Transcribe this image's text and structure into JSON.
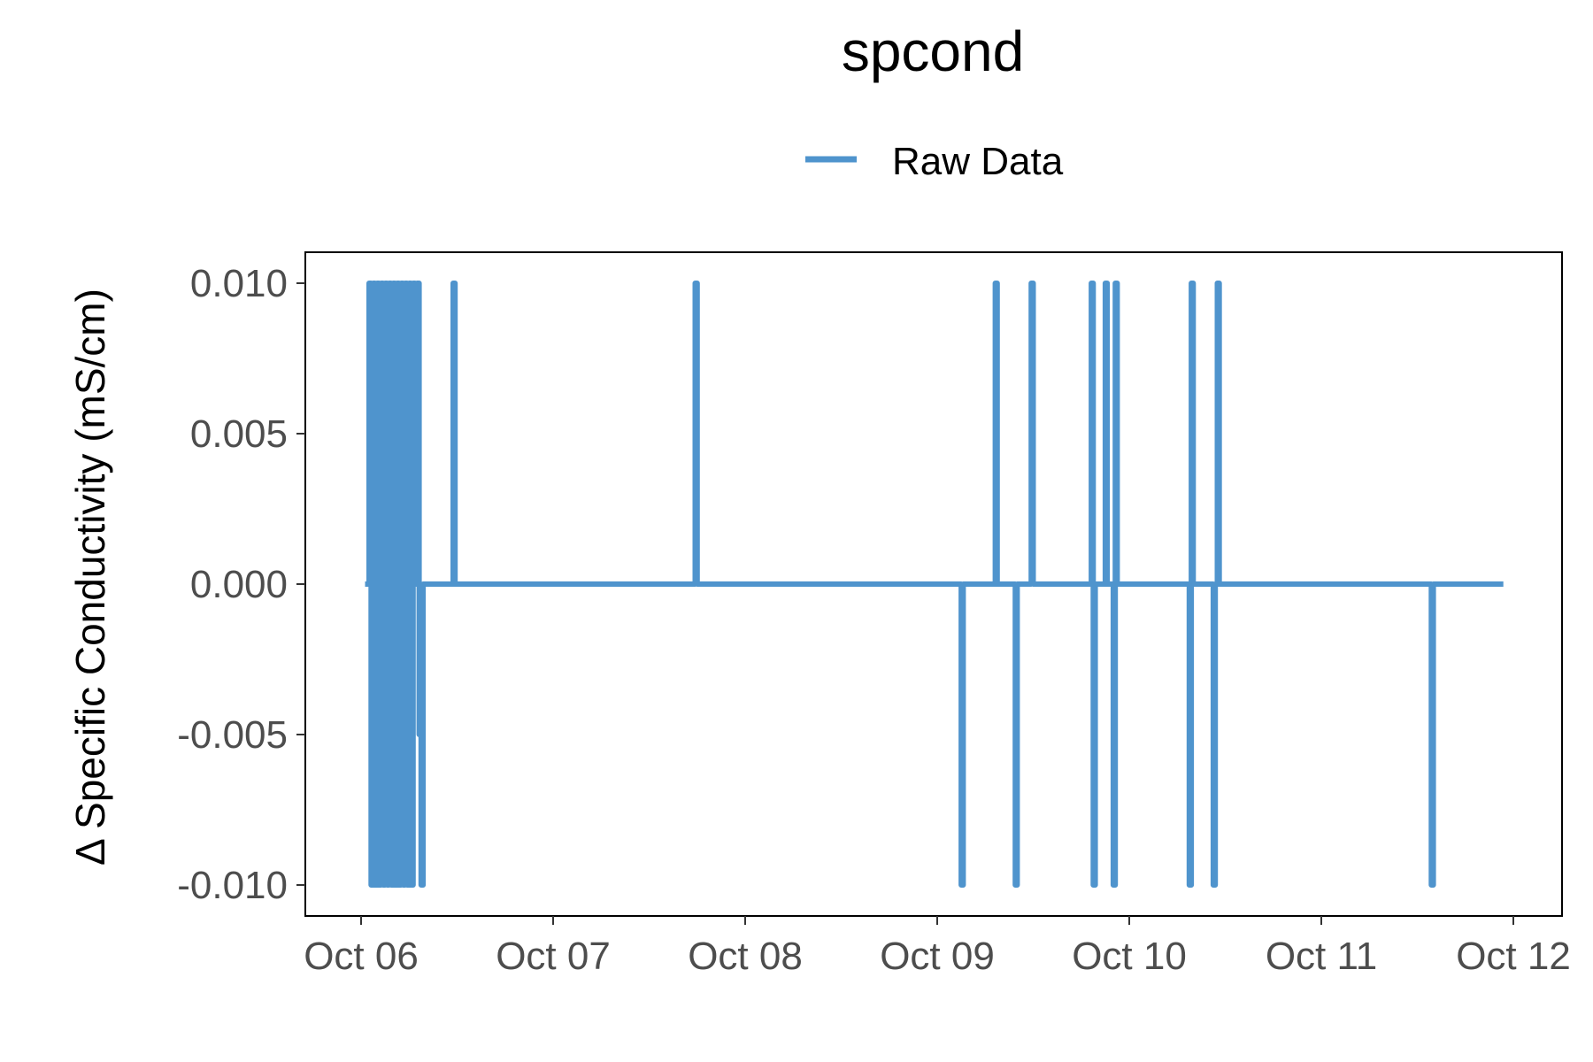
{
  "chart_data": {
    "type": "line",
    "title": "spcond",
    "xlabel": "",
    "ylabel": "Δ Specific Conductivity (mS/cm)",
    "legend": {
      "position": "top",
      "entries": [
        "Raw Data"
      ]
    },
    "grid": false,
    "x_ticks": [
      "Oct 06",
      "Oct 07",
      "Oct 08",
      "Oct 09",
      "Oct 10",
      "Oct 11",
      "Oct 12"
    ],
    "y_ticks": [
      "-0.010",
      "-0.005",
      "0.000",
      "0.005",
      "0.010"
    ],
    "xlim": [
      "2023-10-06 00:00",
      "2023-10-12 00:00"
    ],
    "ylim": [
      -0.0105,
      0.0112
    ],
    "series": [
      {
        "name": "Raw Data",
        "color": "#4f94cd",
        "x": [
          "2023-10-06 00:30",
          "2023-10-06 01:00",
          "2023-10-06 01:00",
          "2023-10-06 01:15",
          "2023-10-06 01:15",
          "2023-10-06 01:30",
          "2023-10-06 01:30",
          "2023-10-06 01:45",
          "2023-10-06 01:45",
          "2023-10-06 02:00",
          "2023-10-06 02:00",
          "2023-10-06 02:15",
          "2023-10-06 02:15",
          "2023-10-06 02:30",
          "2023-10-06 02:30",
          "2023-10-06 02:45",
          "2023-10-06 02:45",
          "2023-10-06 03:00",
          "2023-10-06 03:00",
          "2023-10-06 03:15",
          "2023-10-06 03:15",
          "2023-10-06 03:30",
          "2023-10-06 03:30",
          "2023-10-06 03:45",
          "2023-10-06 03:45",
          "2023-10-06 04:00",
          "2023-10-06 04:00",
          "2023-10-06 04:15",
          "2023-10-06 04:15",
          "2023-10-06 04:30",
          "2023-10-06 04:30",
          "2023-10-06 04:45",
          "2023-10-06 04:45",
          "2023-10-06 05:00",
          "2023-10-06 05:00",
          "2023-10-06 05:15",
          "2023-10-06 05:15",
          "2023-10-06 05:30",
          "2023-10-06 05:30",
          "2023-10-06 05:45",
          "2023-10-06 05:45",
          "2023-10-06 06:00",
          "2023-10-06 06:00",
          "2023-10-06 06:15",
          "2023-10-06 06:15",
          "2023-10-06 06:30",
          "2023-10-06 06:30",
          "2023-10-06 06:45",
          "2023-10-06 06:45",
          "2023-10-06 07:00",
          "2023-10-06 07:00",
          "2023-10-06 07:15",
          "2023-10-06 07:15",
          "2023-10-06 07:30",
          "2023-10-06 07:30",
          "2023-10-06 07:45",
          "2023-10-06 07:45",
          "2023-10-06 08:00",
          "2023-10-06 08:00",
          "2023-10-06 11:30",
          "2023-10-06 11:30",
          "2023-10-06 11:45",
          "2023-10-06 11:45",
          "2023-10-06 12:00",
          "2023-10-06 12:00",
          "2023-10-07 17:45",
          "2023-10-07 17:45",
          "2023-10-07 18:00",
          "2023-10-07 18:00",
          "2023-10-09 03:00",
          "2023-10-09 03:00",
          "2023-10-09 03:15",
          "2023-10-09 03:15",
          "2023-10-09 07:15",
          "2023-10-09 07:15",
          "2023-10-09 07:30",
          "2023-10-09 07:30",
          "2023-10-09 07:45",
          "2023-10-09 07:45",
          "2023-10-09 09:45",
          "2023-10-09 09:45",
          "2023-10-09 10:00",
          "2023-10-09 10:00",
          "2023-10-09 11:45",
          "2023-10-09 11:45",
          "2023-10-09 12:00",
          "2023-10-09 12:00",
          "2023-10-09 12:15",
          "2023-10-09 12:15",
          "2023-10-09 19:15",
          "2023-10-09 19:15",
          "2023-10-09 19:30",
          "2023-10-09 19:30",
          "2023-10-09 19:45",
          "2023-10-09 19:45",
          "2023-10-09 21:00",
          "2023-10-09 21:00",
          "2023-10-09 21:15",
          "2023-10-09 21:15",
          "2023-10-09 22:00",
          "2023-10-09 22:00",
          "2023-10-09 22:15",
          "2023-10-09 22:15",
          "2023-10-09 22:30",
          "2023-10-09 22:30",
          "2023-10-09 22:45",
          "2023-10-09 22:45",
          "2023-10-10 07:30",
          "2023-10-10 07:30",
          "2023-10-10 07:45",
          "2023-10-10 07:45",
          "2023-10-10 08:00",
          "2023-10-10 08:00",
          "2023-10-10 10:30",
          "2023-10-10 10:30",
          "2023-10-10 10:45",
          "2023-10-10 10:45",
          "2023-10-10 11:00",
          "2023-10-10 11:00",
          "2023-10-10 11:15",
          "2023-10-10 11:15",
          "2023-10-11 13:45",
          "2023-10-11 13:45",
          "2023-10-11 14:00",
          "2023-10-11 14:00",
          "2023-10-11 22:45"
        ],
        "y": [
          0.0,
          0.0,
          0.01,
          0.01,
          -0.01,
          -0.01,
          0.01,
          0.01,
          -0.01,
          -0.01,
          0.01,
          0.01,
          -0.01,
          -0.01,
          0.01,
          0.01,
          -0.01,
          -0.01,
          0.01,
          0.01,
          -0.01,
          -0.01,
          0.01,
          0.01,
          -0.01,
          -0.01,
          0.01,
          0.01,
          -0.01,
          -0.01,
          0.01,
          0.01,
          -0.01,
          -0.01,
          0.01,
          0.01,
          -0.01,
          -0.01,
          0.01,
          0.01,
          -0.01,
          -0.01,
          0.01,
          0.01,
          -0.01,
          -0.01,
          0.01,
          0.01,
          0.0,
          0.0,
          0.01,
          0.01,
          -0.005,
          -0.005,
          -0.01,
          -0.01,
          0.0,
          0.0,
          0.0,
          0.0,
          0.01,
          0.01,
          0.0,
          0.0,
          0.0,
          0.0,
          0.01,
          0.01,
          0.0,
          0.0,
          -0.01,
          -0.01,
          0.0,
          0.0,
          0.01,
          0.01,
          0.0,
          0.0,
          0.0,
          0.0,
          -0.01,
          -0.01,
          0.0,
          0.0,
          0.01,
          0.01,
          0.0,
          0.0,
          0.0,
          0.0,
          0.01,
          0.01,
          -0.01,
          -0.01,
          0.0,
          0.0,
          0.01,
          0.01,
          0.0,
          0.0,
          -0.01,
          -0.01,
          0.01,
          0.01,
          0.0,
          0.0,
          0.0,
          0.0,
          -0.01,
          -0.01,
          0.01,
          0.01,
          0.0,
          0.0,
          -0.01,
          -0.01,
          0.0,
          0.0,
          0.01,
          0.01,
          0.0,
          0.0,
          -0.01,
          -0.01,
          0.0,
          0.0
        ]
      }
    ]
  }
}
